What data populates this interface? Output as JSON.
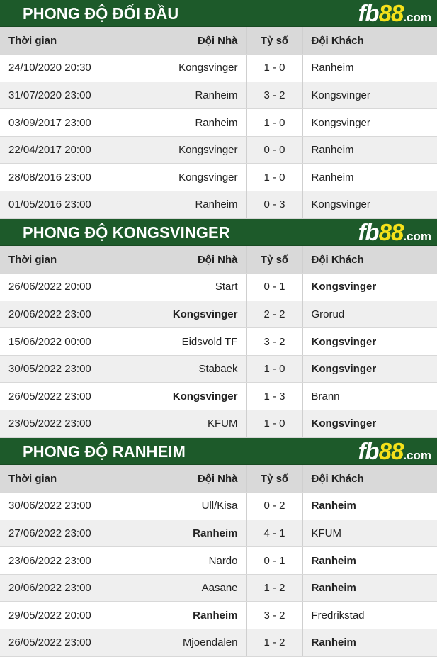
{
  "headers": {
    "time": "Thời gian",
    "home": "Đội Nhà",
    "score": "Tỷ số",
    "away": "Đội Khách"
  },
  "logo": {
    "text_a": "fb",
    "text_b": "88",
    "text_c": ".com"
  },
  "sections": [
    {
      "title": "PHONG ĐỘ ĐỐI ĐẦU",
      "rows": [
        {
          "time": "24/10/2020 20:30",
          "home": "Kongsvinger",
          "score": "1 - 0",
          "away": "Ranheim",
          "bold": ""
        },
        {
          "time": "31/07/2020 23:00",
          "home": "Ranheim",
          "score": "3 - 2",
          "away": "Kongsvinger",
          "bold": ""
        },
        {
          "time": "03/09/2017 23:00",
          "home": "Ranheim",
          "score": "1 - 0",
          "away": "Kongsvinger",
          "bold": ""
        },
        {
          "time": "22/04/2017 20:00",
          "home": "Kongsvinger",
          "score": "0 - 0",
          "away": "Ranheim",
          "bold": ""
        },
        {
          "time": "28/08/2016 23:00",
          "home": "Kongsvinger",
          "score": "1 - 0",
          "away": "Ranheim",
          "bold": ""
        },
        {
          "time": "01/05/2016 23:00",
          "home": "Ranheim",
          "score": "0 - 3",
          "away": "Kongsvinger",
          "bold": ""
        }
      ]
    },
    {
      "title": "PHONG ĐỘ KONGSVINGER",
      "rows": [
        {
          "time": "26/06/2022 20:00",
          "home": "Start",
          "score": "0 - 1",
          "away": "Kongsvinger",
          "bold": "away"
        },
        {
          "time": "20/06/2022 23:00",
          "home": "Kongsvinger",
          "score": "2 - 2",
          "away": "Grorud",
          "bold": "home"
        },
        {
          "time": "15/06/2022 00:00",
          "home": "Eidsvold TF",
          "score": "3 - 2",
          "away": "Kongsvinger",
          "bold": "away"
        },
        {
          "time": "30/05/2022 23:00",
          "home": "Stabaek",
          "score": "1 - 0",
          "away": "Kongsvinger",
          "bold": "away"
        },
        {
          "time": "26/05/2022 23:00",
          "home": "Kongsvinger",
          "score": "1 - 3",
          "away": "Brann",
          "bold": "home"
        },
        {
          "time": "23/05/2022 23:00",
          "home": "KFUM",
          "score": "1 - 0",
          "away": "Kongsvinger",
          "bold": "away"
        }
      ]
    },
    {
      "title": "PHONG ĐỘ RANHEIM",
      "rows": [
        {
          "time": "30/06/2022 23:00",
          "home": "Ull/Kisa",
          "score": "0 - 2",
          "away": "Ranheim",
          "bold": "away"
        },
        {
          "time": "27/06/2022 23:00",
          "home": "Ranheim",
          "score": "4 - 1",
          "away": "KFUM",
          "bold": "home"
        },
        {
          "time": "23/06/2022 23:00",
          "home": "Nardo",
          "score": "0 - 1",
          "away": "Ranheim",
          "bold": "away"
        },
        {
          "time": "20/06/2022 23:00",
          "home": "Aasane",
          "score": "1 - 2",
          "away": "Ranheim",
          "bold": "away"
        },
        {
          "time": "29/05/2022 20:00",
          "home": "Ranheim",
          "score": "3 - 2",
          "away": "Fredrikstad",
          "bold": "home"
        },
        {
          "time": "26/05/2022 23:00",
          "home": "Mjoendalen",
          "score": "1 - 2",
          "away": "Ranheim",
          "bold": "away"
        }
      ]
    }
  ]
}
